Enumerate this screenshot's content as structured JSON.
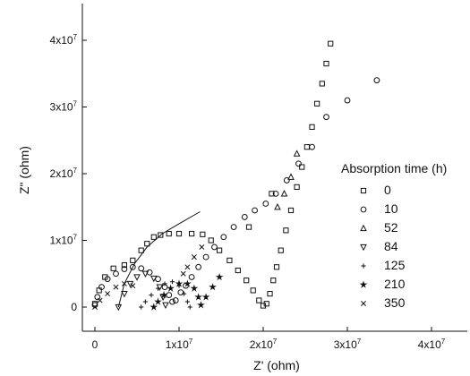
{
  "chart_data": {
    "type": "scatter",
    "title": "",
    "xlabel": "Z' (ohm)",
    "ylabel": "Z\" (ohm)",
    "xlim": [
      -3000000,
      44000000
    ],
    "ylim": [
      -2500000,
      45000000
    ],
    "xticks": [
      {
        "value": 0,
        "mant": "0",
        "exp": ""
      },
      {
        "value": 10000000,
        "mant": "1x10",
        "exp": "7"
      },
      {
        "value": 20000000,
        "mant": "2x10",
        "exp": "7"
      },
      {
        "value": 30000000,
        "mant": "3x10",
        "exp": "7"
      },
      {
        "value": 40000000,
        "mant": "4x10",
        "exp": "7"
      }
    ],
    "yticks": [
      {
        "value": 0,
        "mant": "0",
        "exp": ""
      },
      {
        "value": 10000000,
        "mant": "1x10",
        "exp": "7"
      },
      {
        "value": 20000000,
        "mant": "2x10",
        "exp": "7"
      },
      {
        "value": 30000000,
        "mant": "3x10",
        "exp": "7"
      },
      {
        "value": 40000000,
        "mant": "4x10",
        "exp": "7"
      }
    ],
    "legend_title": "Absorption time (h)",
    "legend_position": "right",
    "series": [
      {
        "name": "0",
        "marker": "square",
        "points": [
          [
            0,
            500000
          ],
          [
            500000,
            2500000
          ],
          [
            1200000,
            4500000
          ],
          [
            2200000,
            5800000
          ],
          [
            3500000,
            6300000
          ],
          [
            4500000,
            7000000
          ],
          [
            5500000,
            8500000
          ],
          [
            6200000,
            9500000
          ],
          [
            7000000,
            10500000
          ],
          [
            7800000,
            10800000
          ],
          [
            8800000,
            11000000
          ],
          [
            10000000,
            11000000
          ],
          [
            11500000,
            11000000
          ],
          [
            12800000,
            10900000
          ],
          [
            13800000,
            10000000
          ],
          [
            14800000,
            8500000
          ],
          [
            16000000,
            7000000
          ],
          [
            17000000,
            5500000
          ],
          [
            18000000,
            4000000
          ],
          [
            18800000,
            2500000
          ],
          [
            19500000,
            1000000
          ],
          [
            20000000,
            200000
          ],
          [
            20400000,
            500000
          ],
          [
            20800000,
            2000000
          ],
          [
            21200000,
            4000000
          ],
          [
            21600000,
            6000000
          ],
          [
            22100000,
            8500000
          ],
          [
            22700000,
            11500000
          ],
          [
            23300000,
            14500000
          ],
          [
            24000000,
            18000000
          ],
          [
            24600000,
            21000000
          ],
          [
            25200000,
            24000000
          ],
          [
            25800000,
            27000000
          ],
          [
            26400000,
            30500000
          ],
          [
            27000000,
            33500000
          ],
          [
            27500000,
            36500000
          ],
          [
            28000000,
            39500000
          ],
          [
            18300000,
            12000000
          ],
          [
            21000000,
            17000000
          ]
        ]
      },
      {
        "name": "10",
        "marker": "circle",
        "points": [
          [
            0,
            300000
          ],
          [
            300000,
            1500000
          ],
          [
            800000,
            3000000
          ],
          [
            1500000,
            4200000
          ],
          [
            2500000,
            5000000
          ],
          [
            3500000,
            5700000
          ],
          [
            4500000,
            6000000
          ],
          [
            5500000,
            5800000
          ],
          [
            6500000,
            5200000
          ],
          [
            7500000,
            4200000
          ],
          [
            8300000,
            3000000
          ],
          [
            8800000,
            1800000
          ],
          [
            9200000,
            800000
          ],
          [
            9600000,
            1000000
          ],
          [
            10200000,
            2200000
          ],
          [
            10800000,
            3200000
          ],
          [
            11500000,
            4500000
          ],
          [
            12300000,
            6000000
          ],
          [
            13200000,
            7500000
          ],
          [
            14200000,
            9000000
          ],
          [
            15300000,
            10500000
          ],
          [
            16500000,
            12000000
          ],
          [
            17800000,
            13500000
          ],
          [
            19000000,
            14500000
          ],
          [
            20300000,
            15500000
          ],
          [
            21500000,
            17000000
          ],
          [
            22800000,
            19000000
          ],
          [
            24200000,
            21500000
          ],
          [
            25800000,
            24000000
          ],
          [
            27500000,
            28500000
          ],
          [
            30000000,
            31000000
          ],
          [
            33500000,
            34000000
          ]
        ]
      },
      {
        "name": "52",
        "marker": "triangle-up",
        "points": [
          [
            24000000,
            23000000
          ],
          [
            23300000,
            19500000
          ],
          [
            22500000,
            17000000
          ],
          [
            21700000,
            15000000
          ]
        ]
      },
      {
        "name": "84",
        "marker": "triangle-down",
        "points": [
          [
            2800000,
            0
          ],
          [
            3500000,
            2000000
          ],
          [
            4200000,
            3500000
          ],
          [
            5000000,
            4500000
          ],
          [
            6000000,
            5000000
          ],
          [
            7000000,
            4300000
          ],
          [
            7700000,
            3000000
          ],
          [
            8100000,
            1500000
          ],
          [
            8400000,
            300000
          ]
        ]
      },
      {
        "name": "125",
        "marker": "plus",
        "points": [
          [
            5500000,
            0
          ],
          [
            6000000,
            800000
          ],
          [
            6700000,
            1800000
          ],
          [
            7500000,
            2800000
          ],
          [
            8300000,
            3500000
          ],
          [
            9200000,
            3800000
          ],
          [
            10000000,
            3200000
          ],
          [
            10600000,
            2000000
          ],
          [
            11000000,
            800000
          ],
          [
            11300000,
            0
          ]
        ]
      },
      {
        "name": "210",
        "marker": "star",
        "points": [
          [
            7000000,
            0
          ],
          [
            7500000,
            800000
          ],
          [
            8200000,
            1800000
          ],
          [
            9000000,
            2800000
          ],
          [
            10000000,
            3500000
          ],
          [
            11000000,
            3500000
          ],
          [
            11800000,
            2800000
          ],
          [
            12300000,
            1500000
          ],
          [
            12600000,
            300000
          ],
          [
            13200000,
            1500000
          ],
          [
            14000000,
            3000000
          ],
          [
            14800000,
            4500000
          ]
        ]
      },
      {
        "name": "350",
        "marker": "cross",
        "points": [
          [
            0,
            0
          ],
          [
            600000,
            1000000
          ],
          [
            1500000,
            2000000
          ],
          [
            2500000,
            3000000
          ],
          [
            3500000,
            3500000
          ],
          [
            4500000,
            3200000
          ],
          [
            10500000,
            5000000
          ],
          [
            11000000,
            6000000
          ],
          [
            11800000,
            7500000
          ],
          [
            12700000,
            9000000
          ]
        ]
      }
    ],
    "fit_curve": [
      [
        2800000,
        0
      ],
      [
        3500000,
        3500000
      ],
      [
        4700000,
        6500000
      ],
      [
        6200000,
        9000000
      ],
      [
        8000000,
        11000000
      ],
      [
        10000000,
        12500000
      ],
      [
        12500000,
        14300000
      ]
    ]
  }
}
